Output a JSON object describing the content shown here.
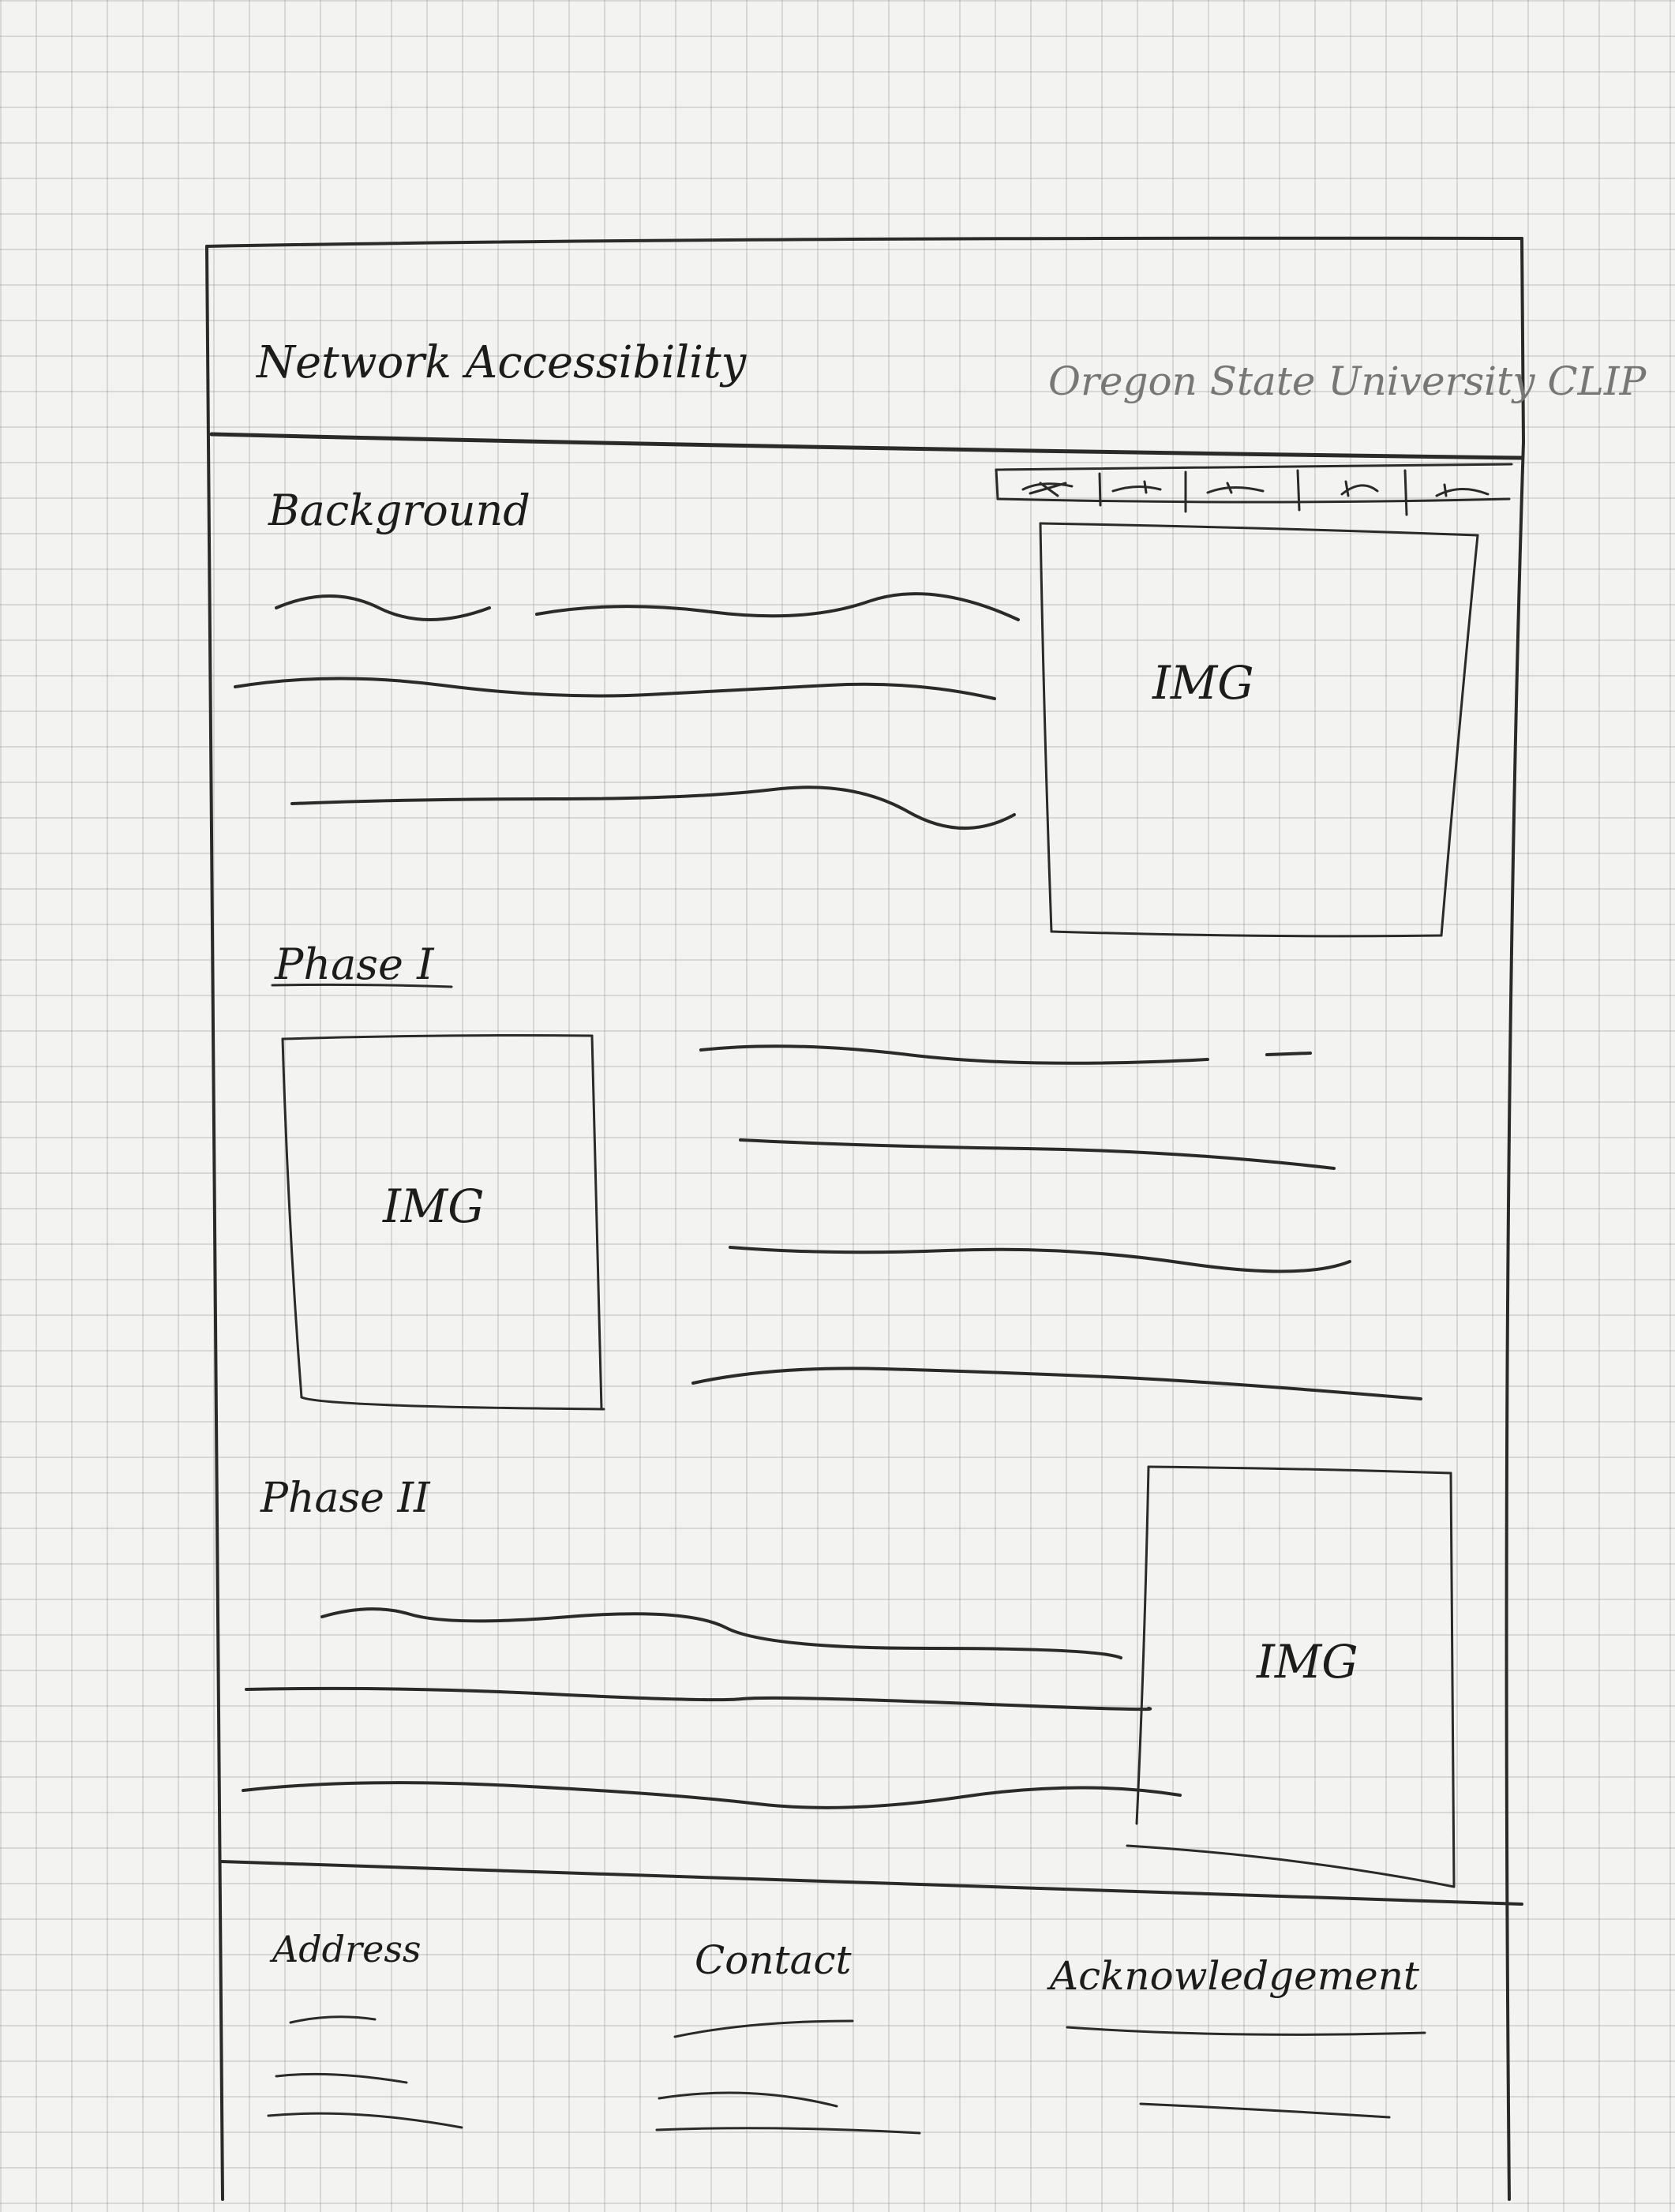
{
  "header": {
    "title": "Network Accessibility",
    "brand": "Oregon State University CLIP"
  },
  "sections": {
    "background": {
      "heading": "Background",
      "image_label": "IMG"
    },
    "phase1": {
      "heading": "Phase I",
      "image_label": "IMG"
    },
    "phase2": {
      "heading": "Phase II",
      "image_label": "IMG"
    }
  },
  "footer": {
    "address": "Address",
    "contact": "Contact",
    "acknowledgement": "Acknowledgement"
  },
  "colors": {
    "ink": "#2a2a2a",
    "paper": "#f3f3f1",
    "grid": "#c9c9c7"
  }
}
